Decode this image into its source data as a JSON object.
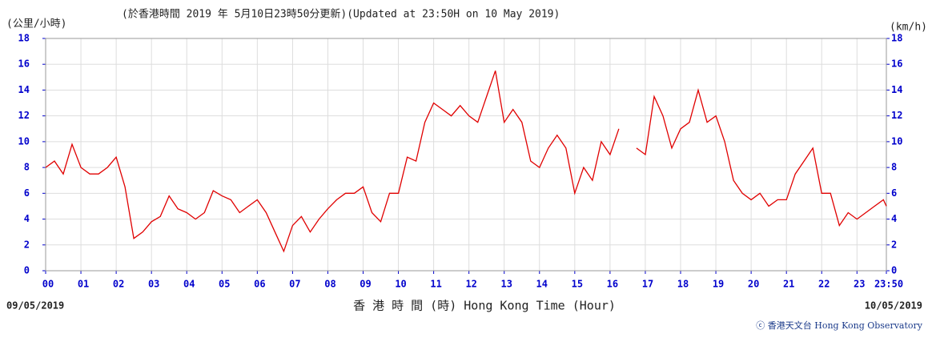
{
  "chart_data": {
    "type": "line",
    "y_unit_left": "(公里/小時)",
    "y_unit_right": "(km/h)",
    "title": "(於香港時間 2019 年 5月10日23時50分更新)(Updated at 23:50H on 10 May 2019)",
    "x_label": "香 港 時 間 (時) Hong Kong Time (Hour)",
    "start_date": "09/05/2019",
    "end_date": "10/05/2019",
    "credit": "ⓒ 香港天文台 Hong Kong Observatory",
    "xlim": [
      0,
      23.8333
    ],
    "ylim": [
      0,
      18
    ],
    "yticks": [
      0,
      2,
      4,
      6,
      8,
      10,
      12,
      14,
      16,
      18
    ],
    "xticks": [
      {
        "value": 0,
        "label": "00"
      },
      {
        "value": 1,
        "label": "01"
      },
      {
        "value": 2,
        "label": "02"
      },
      {
        "value": 3,
        "label": "03"
      },
      {
        "value": 4,
        "label": "04"
      },
      {
        "value": 5,
        "label": "05"
      },
      {
        "value": 6,
        "label": "06"
      },
      {
        "value": 7,
        "label": "07"
      },
      {
        "value": 8,
        "label": "08"
      },
      {
        "value": 9,
        "label": "09"
      },
      {
        "value": 10,
        "label": "10"
      },
      {
        "value": 11,
        "label": "11"
      },
      {
        "value": 12,
        "label": "12"
      },
      {
        "value": 13,
        "label": "13"
      },
      {
        "value": 14,
        "label": "14"
      },
      {
        "value": 15,
        "label": "15"
      },
      {
        "value": 16,
        "label": "16"
      },
      {
        "value": 17,
        "label": "17"
      },
      {
        "value": 18,
        "label": "18"
      },
      {
        "value": 19,
        "label": "19"
      },
      {
        "value": 20,
        "label": "20"
      },
      {
        "value": 21,
        "label": "21"
      },
      {
        "value": 22,
        "label": "22"
      },
      {
        "value": 23,
        "label": "23"
      },
      {
        "value": 23.8333,
        "label": "23:50"
      }
    ],
    "grid": true,
    "color": "#e00000",
    "x": [
      0,
      0.25,
      0.5,
      0.75,
      1,
      1.25,
      1.5,
      1.75,
      2,
      2.25,
      2.5,
      2.75,
      3,
      3.25,
      3.5,
      3.75,
      4,
      4.25,
      4.5,
      4.75,
      5,
      5.25,
      5.5,
      5.75,
      6,
      6.25,
      6.5,
      6.75,
      7,
      7.25,
      7.5,
      7.75,
      8,
      8.25,
      8.5,
      8.75,
      9,
      9.25,
      9.5,
      9.75,
      10,
      10.25,
      10.5,
      10.75,
      11,
      11.25,
      11.5,
      11.75,
      12,
      12.25,
      12.5,
      12.75,
      13,
      13.25,
      13.5,
      13.75,
      14,
      14.25,
      14.5,
      14.75,
      15,
      15.25,
      15.5,
      15.75,
      16,
      16.25,
      16.5,
      16.75,
      17,
      17.25,
      17.5,
      17.75,
      18,
      18.25,
      18.5,
      18.75,
      19,
      19.25,
      19.5,
      19.75,
      20,
      20.25,
      20.5,
      20.75,
      21,
      21.25,
      21.5,
      21.75,
      22,
      22.25,
      22.5,
      22.75,
      23,
      23.25,
      23.5,
      23.75,
      23.8333
    ],
    "values": [
      8.0,
      8.5,
      7.5,
      9.8,
      8.0,
      7.5,
      7.5,
      8.0,
      8.8,
      6.5,
      2.5,
      3.0,
      3.8,
      4.2,
      5.8,
      4.8,
      4.5,
      4.0,
      4.5,
      6.2,
      5.8,
      5.5,
      4.5,
      5.0,
      5.5,
      4.5,
      3.0,
      1.5,
      3.5,
      4.2,
      3.0,
      4.0,
      4.8,
      5.5,
      6.0,
      6.0,
      6.5,
      4.5,
      3.8,
      6.0,
      6.0,
      8.8,
      8.5,
      11.5,
      13.0,
      12.5,
      12.0,
      12.8,
      12.0,
      11.5,
      13.5,
      15.5,
      11.5,
      12.5,
      11.5,
      8.5,
      8.0,
      9.5,
      10.5,
      9.5,
      6.0,
      8.0,
      7.0,
      10.0,
      9.0,
      11.0,
      null,
      9.5,
      9.0,
      13.5,
      12.0,
      9.5,
      11.0,
      11.5,
      14.0,
      11.5,
      12.0,
      10.0,
      7.0,
      6.0,
      5.5,
      6.0,
      5.0,
      5.5,
      5.5,
      7.5,
      8.5,
      9.5,
      6.0,
      6.0,
      3.5,
      4.5,
      4.0,
      4.5,
      5.0,
      5.5,
      5.0
    ]
  }
}
